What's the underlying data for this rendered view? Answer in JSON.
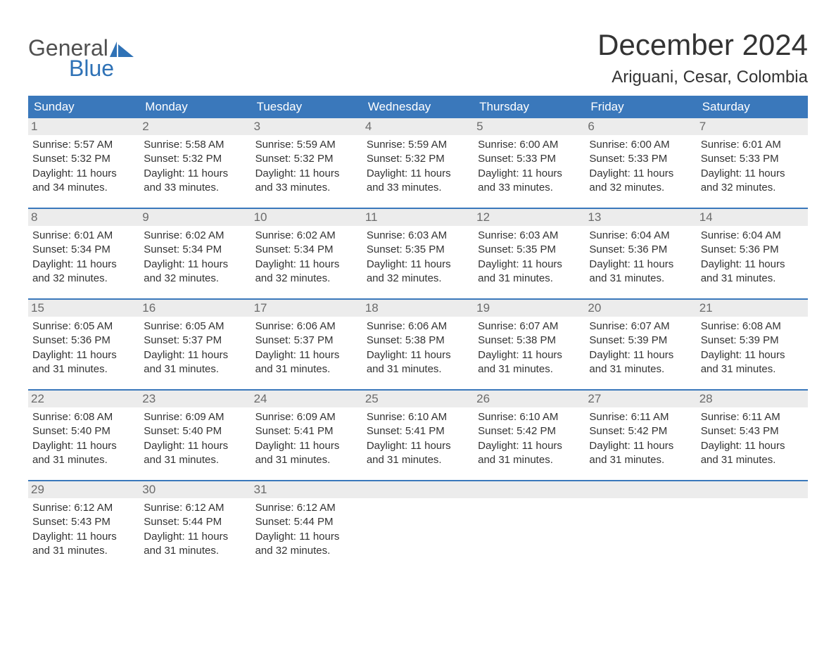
{
  "logo": {
    "text_general": "General",
    "text_blue": "Blue",
    "sail_color": "#2f72b6"
  },
  "title": "December 2024",
  "location": "Ariguani, Cesar, Colombia",
  "colors": {
    "header_bg": "#3a78bb",
    "header_text": "#ffffff",
    "daynum_bg": "#ececec",
    "daynum_text": "#6b6b6b",
    "body_text": "#333333",
    "week_border": "#3a78bb"
  },
  "weekdays": [
    "Sunday",
    "Monday",
    "Tuesday",
    "Wednesday",
    "Thursday",
    "Friday",
    "Saturday"
  ],
  "days": [
    {
      "n": "1",
      "sunrise": "5:57 AM",
      "sunset": "5:32 PM",
      "daylight": "11 hours and 34 minutes."
    },
    {
      "n": "2",
      "sunrise": "5:58 AM",
      "sunset": "5:32 PM",
      "daylight": "11 hours and 33 minutes."
    },
    {
      "n": "3",
      "sunrise": "5:59 AM",
      "sunset": "5:32 PM",
      "daylight": "11 hours and 33 minutes."
    },
    {
      "n": "4",
      "sunrise": "5:59 AM",
      "sunset": "5:32 PM",
      "daylight": "11 hours and 33 minutes."
    },
    {
      "n": "5",
      "sunrise": "6:00 AM",
      "sunset": "5:33 PM",
      "daylight": "11 hours and 33 minutes."
    },
    {
      "n": "6",
      "sunrise": "6:00 AM",
      "sunset": "5:33 PM",
      "daylight": "11 hours and 32 minutes."
    },
    {
      "n": "7",
      "sunrise": "6:01 AM",
      "sunset": "5:33 PM",
      "daylight": "11 hours and 32 minutes."
    },
    {
      "n": "8",
      "sunrise": "6:01 AM",
      "sunset": "5:34 PM",
      "daylight": "11 hours and 32 minutes."
    },
    {
      "n": "9",
      "sunrise": "6:02 AM",
      "sunset": "5:34 PM",
      "daylight": "11 hours and 32 minutes."
    },
    {
      "n": "10",
      "sunrise": "6:02 AM",
      "sunset": "5:34 PM",
      "daylight": "11 hours and 32 minutes."
    },
    {
      "n": "11",
      "sunrise": "6:03 AM",
      "sunset": "5:35 PM",
      "daylight": "11 hours and 32 minutes."
    },
    {
      "n": "12",
      "sunrise": "6:03 AM",
      "sunset": "5:35 PM",
      "daylight": "11 hours and 31 minutes."
    },
    {
      "n": "13",
      "sunrise": "6:04 AM",
      "sunset": "5:36 PM",
      "daylight": "11 hours and 31 minutes."
    },
    {
      "n": "14",
      "sunrise": "6:04 AM",
      "sunset": "5:36 PM",
      "daylight": "11 hours and 31 minutes."
    },
    {
      "n": "15",
      "sunrise": "6:05 AM",
      "sunset": "5:36 PM",
      "daylight": "11 hours and 31 minutes."
    },
    {
      "n": "16",
      "sunrise": "6:05 AM",
      "sunset": "5:37 PM",
      "daylight": "11 hours and 31 minutes."
    },
    {
      "n": "17",
      "sunrise": "6:06 AM",
      "sunset": "5:37 PM",
      "daylight": "11 hours and 31 minutes."
    },
    {
      "n": "18",
      "sunrise": "6:06 AM",
      "sunset": "5:38 PM",
      "daylight": "11 hours and 31 minutes."
    },
    {
      "n": "19",
      "sunrise": "6:07 AM",
      "sunset": "5:38 PM",
      "daylight": "11 hours and 31 minutes."
    },
    {
      "n": "20",
      "sunrise": "6:07 AM",
      "sunset": "5:39 PM",
      "daylight": "11 hours and 31 minutes."
    },
    {
      "n": "21",
      "sunrise": "6:08 AM",
      "sunset": "5:39 PM",
      "daylight": "11 hours and 31 minutes."
    },
    {
      "n": "22",
      "sunrise": "6:08 AM",
      "sunset": "5:40 PM",
      "daylight": "11 hours and 31 minutes."
    },
    {
      "n": "23",
      "sunrise": "6:09 AM",
      "sunset": "5:40 PM",
      "daylight": "11 hours and 31 minutes."
    },
    {
      "n": "24",
      "sunrise": "6:09 AM",
      "sunset": "5:41 PM",
      "daylight": "11 hours and 31 minutes."
    },
    {
      "n": "25",
      "sunrise": "6:10 AM",
      "sunset": "5:41 PM",
      "daylight": "11 hours and 31 minutes."
    },
    {
      "n": "26",
      "sunrise": "6:10 AM",
      "sunset": "5:42 PM",
      "daylight": "11 hours and 31 minutes."
    },
    {
      "n": "27",
      "sunrise": "6:11 AM",
      "sunset": "5:42 PM",
      "daylight": "11 hours and 31 minutes."
    },
    {
      "n": "28",
      "sunrise": "6:11 AM",
      "sunset": "5:43 PM",
      "daylight": "11 hours and 31 minutes."
    },
    {
      "n": "29",
      "sunrise": "6:12 AM",
      "sunset": "5:43 PM",
      "daylight": "11 hours and 31 minutes."
    },
    {
      "n": "30",
      "sunrise": "6:12 AM",
      "sunset": "5:44 PM",
      "daylight": "11 hours and 31 minutes."
    },
    {
      "n": "31",
      "sunrise": "6:12 AM",
      "sunset": "5:44 PM",
      "daylight": "11 hours and 32 minutes."
    }
  ],
  "labels": {
    "sunrise": "Sunrise: ",
    "sunset": "Sunset: ",
    "daylight": "Daylight: "
  },
  "layout": {
    "start_weekday_offset": 0,
    "total_cells": 35
  }
}
